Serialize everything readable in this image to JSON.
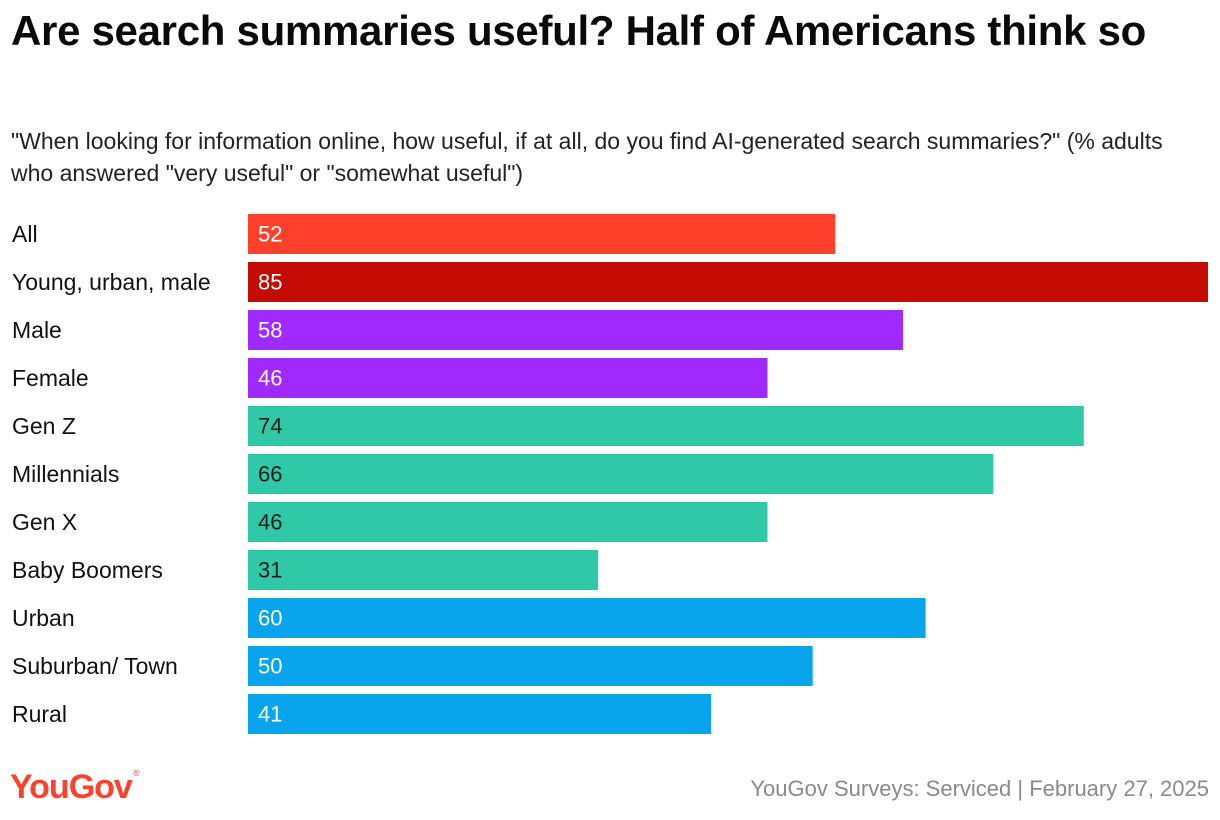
{
  "chart_data": {
    "type": "bar",
    "orientation": "horizontal",
    "title": "Are search summaries useful? Half of Americans think so",
    "subtitle": "\"When looking for information online, how useful, if at all, do you find AI-generated search summaries?\" (% adults who answered \"very useful\" or \"somewhat useful\")",
    "categories": [
      "All",
      "Young, urban, male",
      "Male",
      "Female",
      "Gen Z",
      "Millennials",
      "Gen X",
      "Baby Boomers",
      "Urban",
      "Suburban/ Town",
      "Rural"
    ],
    "values": [
      52,
      85,
      58,
      46,
      74,
      66,
      46,
      31,
      60,
      50,
      41
    ],
    "bar_colors": [
      "#ff412c",
      "#c40c04",
      "#9f29ff",
      "#9f29ff",
      "#30c9a8",
      "#30c9a8",
      "#30c9a8",
      "#30c9a8",
      "#08a5ec",
      "#08a5ec",
      "#08a5ec"
    ],
    "label_colors": [
      "#ffffff",
      "#ffffff",
      "#ffffff",
      "#ffffff",
      "#1a1a1a",
      "#1a1a1a",
      "#1a1a1a",
      "#1a1a1a",
      "#ffffff",
      "#ffffff",
      "#ffffff"
    ],
    "xlim": [
      0,
      85
    ],
    "xlabel": "",
    "ylabel": "",
    "grid": false,
    "legend": "none"
  },
  "footer": {
    "brand": "YouGov",
    "brand_mark": "®",
    "source": "YouGov Surveys: Serviced | February 27, 2025"
  }
}
